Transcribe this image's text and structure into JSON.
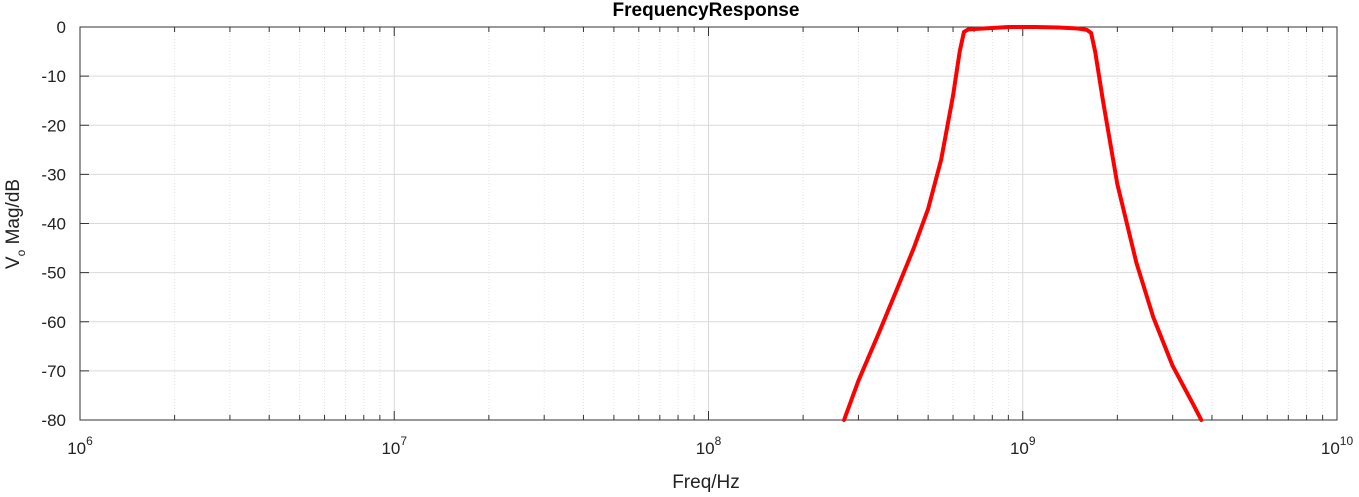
{
  "chart_data": {
    "type": "line",
    "title": "FrequencyResponse",
    "xlabel": "Freq/Hz",
    "ylabel": {
      "main": "V",
      "subscript": "o",
      "rest": " Mag/dB"
    },
    "x_scale": "log",
    "xlim": [
      1000000,
      10000000000
    ],
    "ylim": [
      -80,
      0
    ],
    "grid": true,
    "x_ticks": [
      {
        "base": "10",
        "exp": "6",
        "value": 1000000
      },
      {
        "base": "10",
        "exp": "7",
        "value": 10000000
      },
      {
        "base": "10",
        "exp": "8",
        "value": 100000000
      },
      {
        "base": "10",
        "exp": "9",
        "value": 1000000000
      },
      {
        "base": "10",
        "exp": "10",
        "value": 10000000000
      }
    ],
    "y_ticks": [
      {
        "label": "0",
        "value": 0
      },
      {
        "label": "-10",
        "value": -10
      },
      {
        "label": "-20",
        "value": -20
      },
      {
        "label": "-30",
        "value": -30
      },
      {
        "label": "-40",
        "value": -40
      },
      {
        "label": "-50",
        "value": -50
      },
      {
        "label": "-60",
        "value": -60
      },
      {
        "label": "-70",
        "value": -70
      },
      {
        "label": "-80",
        "value": -80
      }
    ],
    "series": [
      {
        "color": "#ff0000",
        "x": [
          270000000,
          300000000,
          350000000,
          400000000,
          450000000,
          500000000,
          550000000,
          600000000,
          630000000,
          650000000,
          670000000,
          700000000,
          800000000,
          900000000,
          1000000000,
          1100000000,
          1300000000,
          1500000000,
          1600000000,
          1650000000,
          1700000000,
          1800000000,
          2000000000,
          2300000000,
          2600000000,
          3000000000,
          3500000000,
          3700000000
        ],
        "y": [
          -80,
          -72,
          -62,
          -53,
          -45,
          -37,
          -27,
          -14,
          -5,
          -1,
          -0.5,
          -0.4,
          -0.2,
          0,
          0,
          0,
          -0.1,
          -0.3,
          -0.6,
          -1.2,
          -5,
          -15,
          -32,
          -48,
          -59,
          -69,
          -77,
          -80
        ]
      }
    ]
  }
}
